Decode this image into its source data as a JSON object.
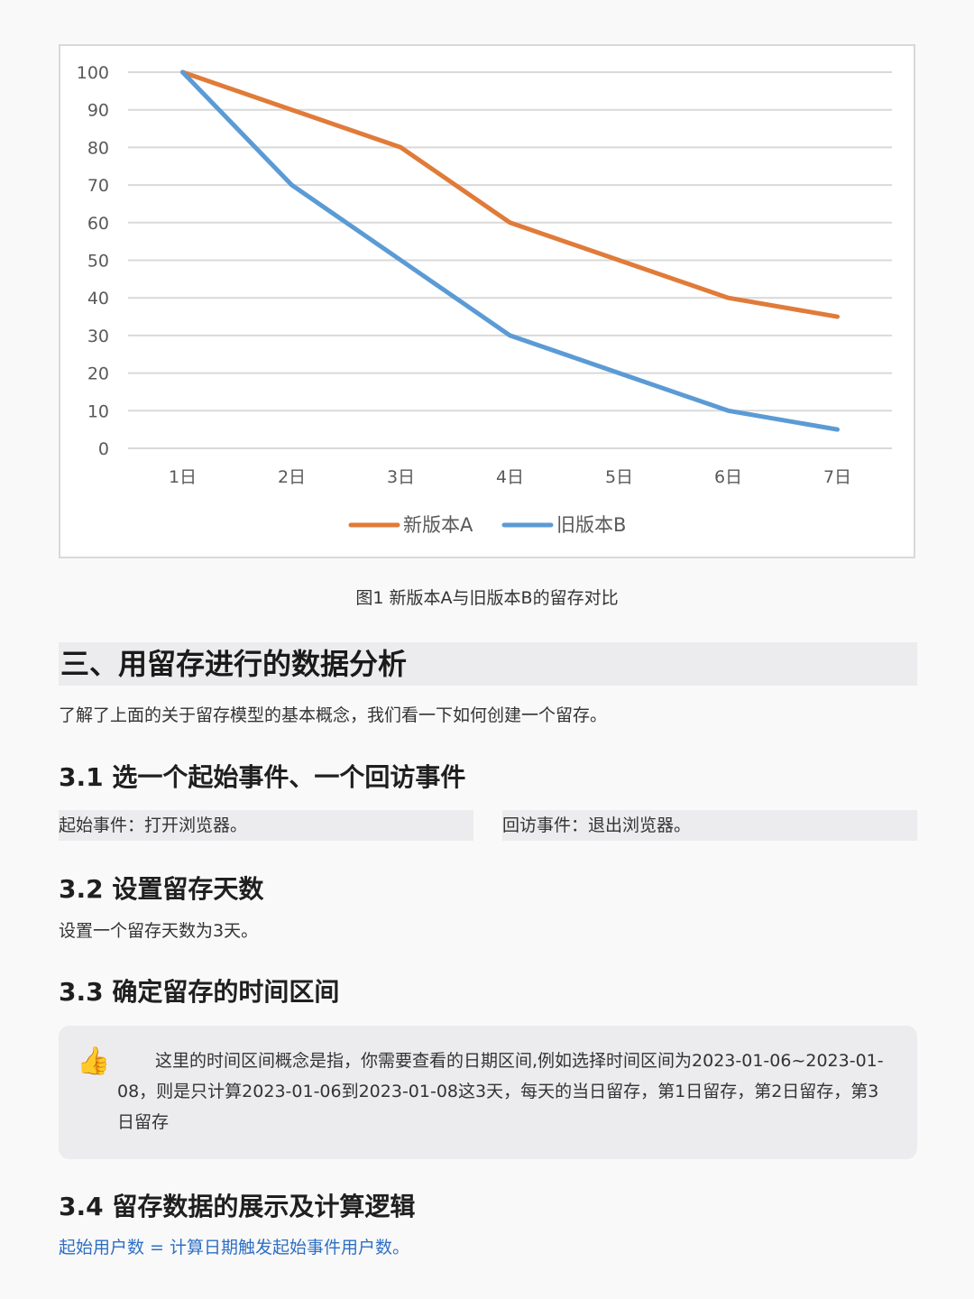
{
  "chart_data": {
    "type": "line",
    "categories": [
      "1日",
      "2日",
      "3日",
      "4日",
      "5日",
      "6日",
      "7日"
    ],
    "series": [
      {
        "name": "新版本A",
        "values": [
          100,
          90,
          80,
          60,
          50,
          40,
          35
        ],
        "color": "#e07b39"
      },
      {
        "name": "旧版本B",
        "values": [
          100,
          70,
          50,
          30,
          20,
          10,
          5
        ],
        "color": "#5b9bd5"
      }
    ],
    "y_ticks": [
      "0",
      "10",
      "20",
      "30",
      "40",
      "50",
      "60",
      "70",
      "80",
      "90",
      "100"
    ],
    "ylim": [
      0,
      100
    ],
    "grid": true,
    "legend_position": "bottom"
  },
  "caption": "图1  新版本A与旧版本B的留存对比",
  "section_title": "三、用留存进行的数据分析",
  "intro": "了解了上面的关于留存模型的基本概念，我们看一下如何创建一个留存。",
  "s31": {
    "title": "3.1 选一个起始事件、一个回访事件",
    "start_event": "起始事件：打开浏览器。",
    "return_event": "回访事件：退出浏览器。"
  },
  "s32": {
    "title": "3.2 设置留存天数",
    "text": "设置一个留存天数为3天。"
  },
  "s33": {
    "title": "3.3 确定留存的时间区间",
    "callout_icon": "thumbs-up-icon",
    "callout_text": "这里的时间区间概念是指，你需要查看的日期区间,例如选择时间区间为2023-01-06~2023-01-08，则是只计算2023-01-06到2023-01-08这3天，每天的当日留存，第1日留存，第2日留存，第3日留存"
  },
  "s34": {
    "title": "3.4 留存数据的展示及计算逻辑",
    "formula": "起始用户数 = 计算日期触发起始事件用户数。"
  }
}
